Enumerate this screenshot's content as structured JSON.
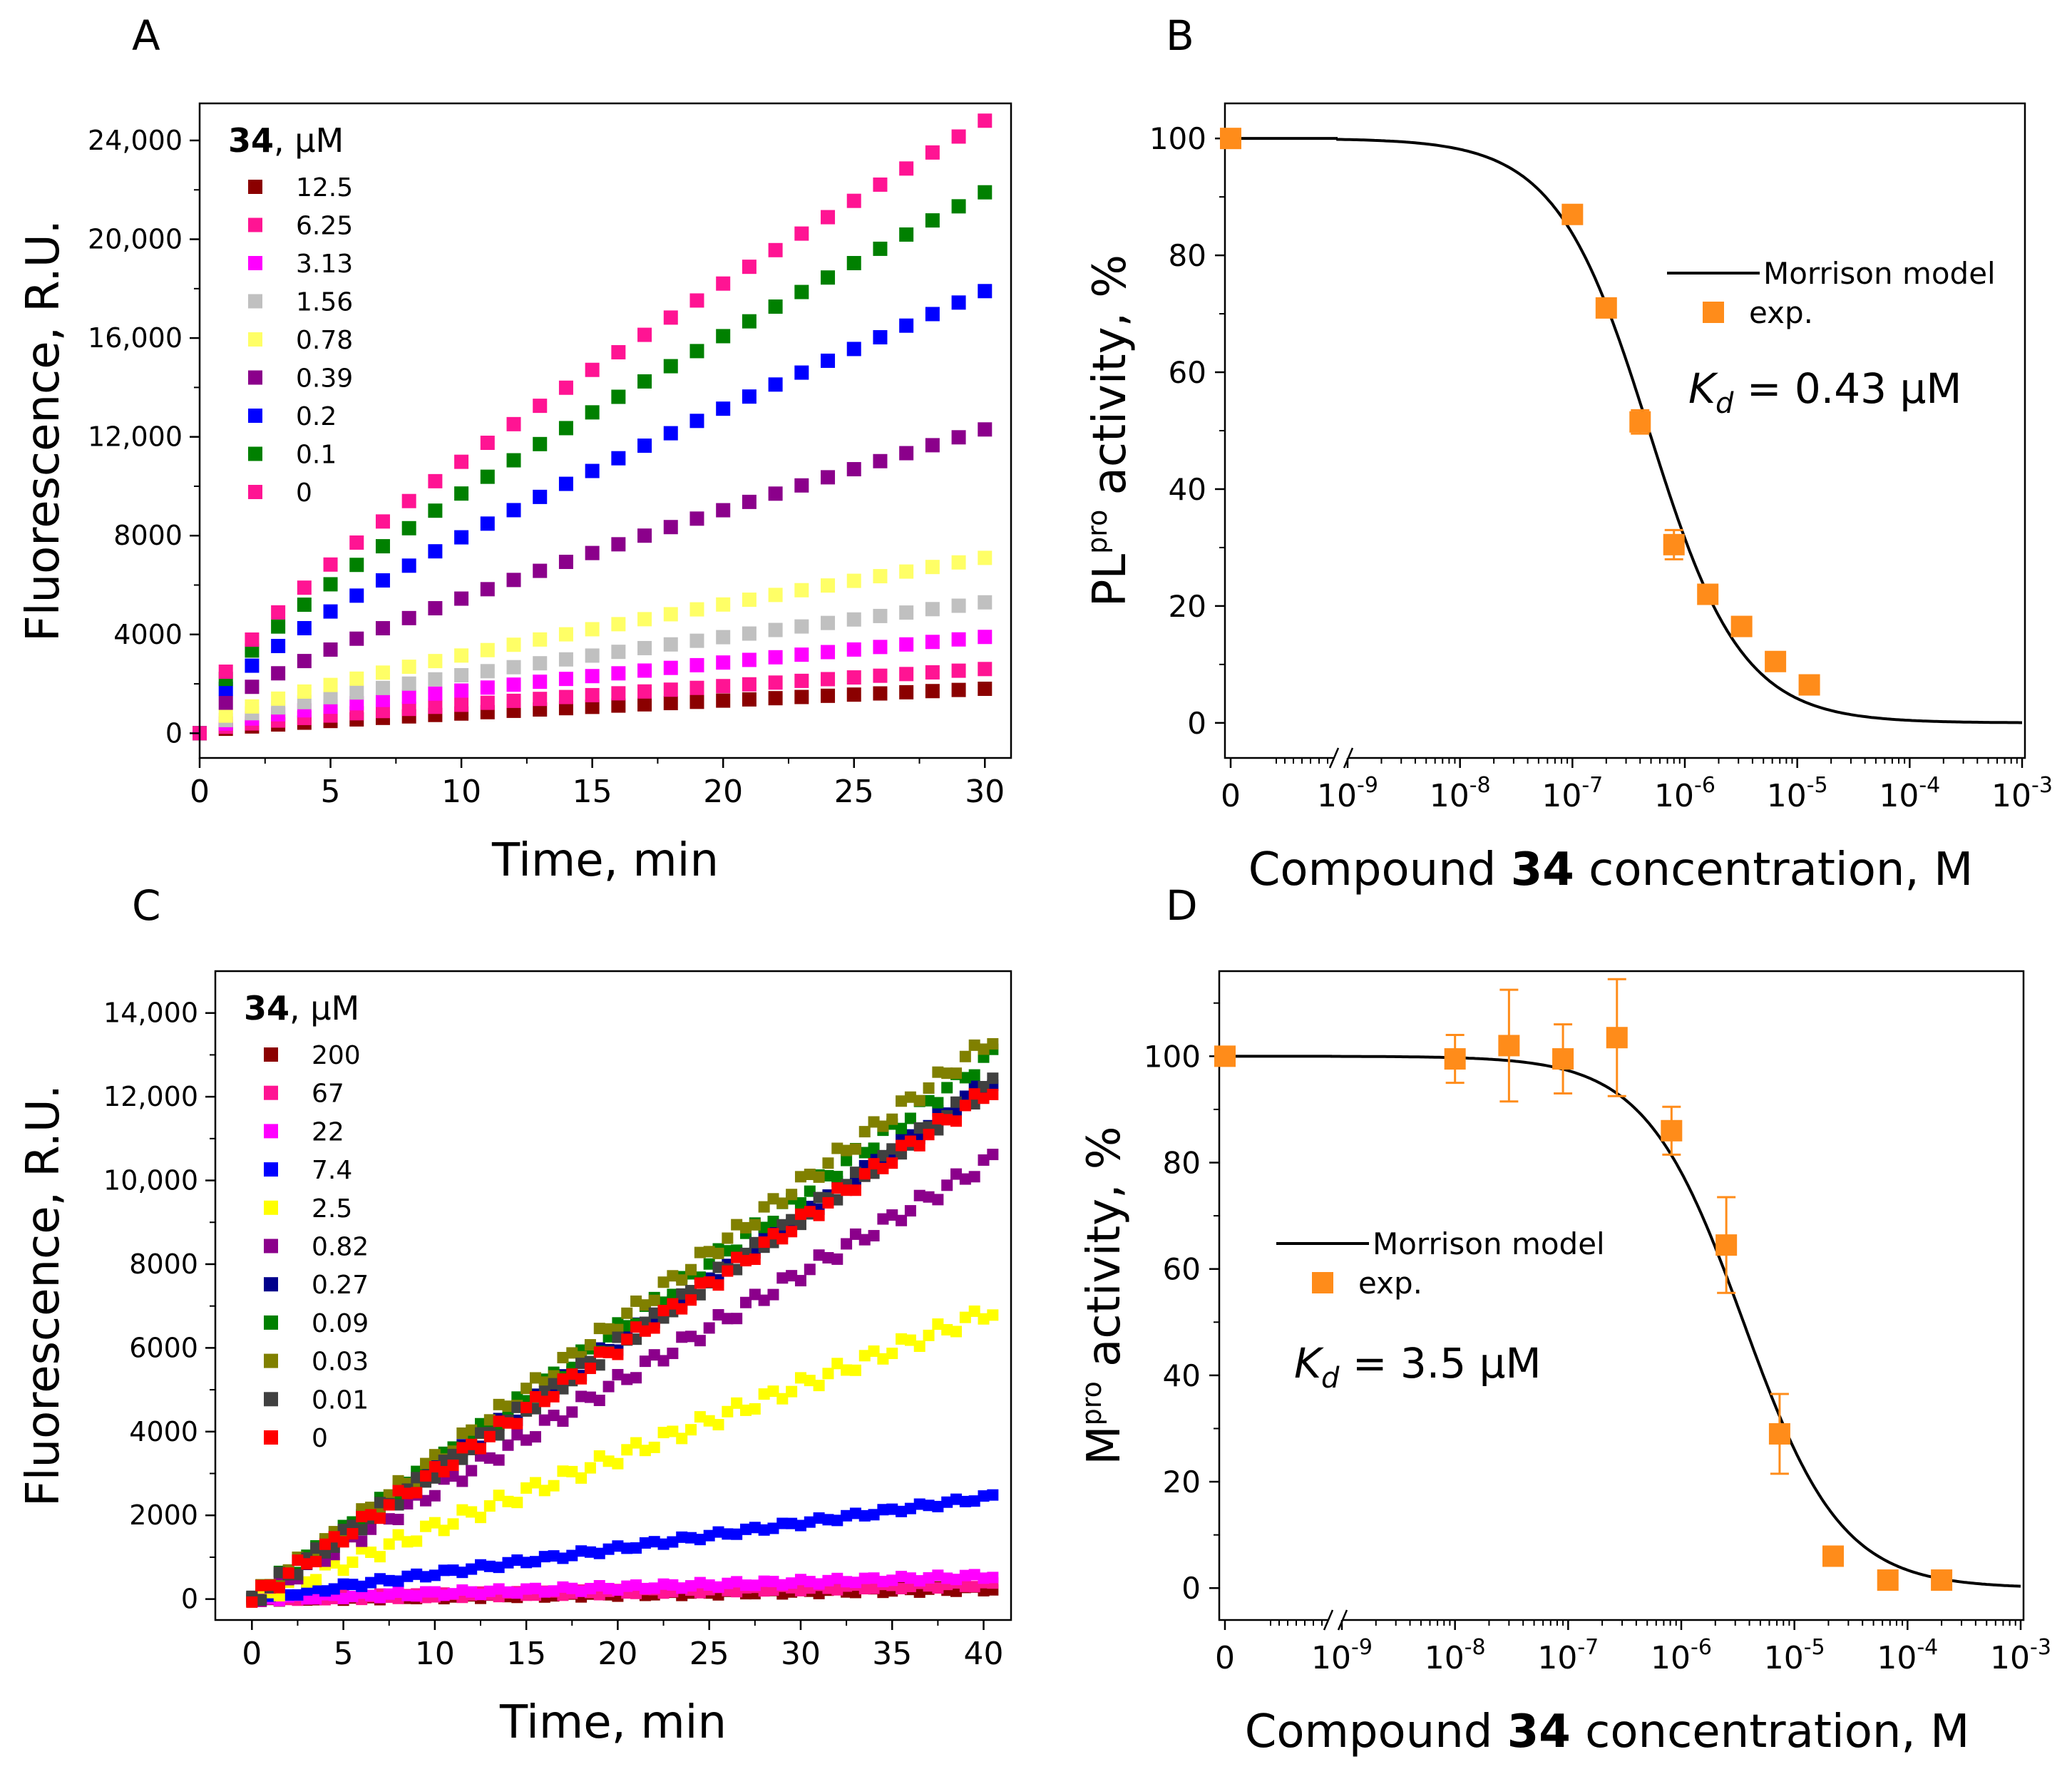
{
  "chart_data": [
    {
      "panel": "A",
      "type": "scatter",
      "xlabel": "Time, min",
      "ylabel": "Fluorescence, R.U.",
      "xlim": [
        0,
        31
      ],
      "ylim": [
        -1000,
        25500
      ],
      "xticks": [
        0,
        5,
        10,
        15,
        20,
        25,
        30
      ],
      "xtick_labels": [
        "0",
        "5",
        "10",
        "15",
        "20",
        "25",
        "30"
      ],
      "yticks": [
        0,
        4000,
        8000,
        12000,
        16000,
        20000,
        24000
      ],
      "ytick_labels": [
        "0",
        "4000",
        "8000",
        "12,000",
        "16,000",
        "20,000",
        "24,000"
      ],
      "legend_title": {
        "bold": "34",
        "rest": ", μM"
      },
      "x_start": 0,
      "x_end": 30,
      "x_step": 1,
      "series": [
        {
          "name": "12.5",
          "color": "#8b0000",
          "final": 1800
        },
        {
          "name": "6.25",
          "color": "#ff1493",
          "final": 2600
        },
        {
          "name": "3.13",
          "color": "#ff00ff",
          "final": 3900
        },
        {
          "name": "1.56",
          "color": "#c0c0c0",
          "final": 5300
        },
        {
          "name": "0.78",
          "color": "#ffff66",
          "final": 7100
        },
        {
          "name": "0.39",
          "color": "#8b008b",
          "final": 12300
        },
        {
          "name": "0.2",
          "color": "#0000ff",
          "final": 17900
        },
        {
          "name": "0.1",
          "color": "#008000",
          "final": 21900
        },
        {
          "name": "0",
          "color": "#ff1493",
          "final": 24800
        }
      ]
    },
    {
      "panel": "B",
      "type": "scatter",
      "xlabel": {
        "pre": "Compound ",
        "bold": "34",
        "post": " concentration, M"
      },
      "ylabel": {
        "base": "PL",
        "sup": "pro",
        "rest": " activity, %"
      },
      "ylim": [
        -6,
        106
      ],
      "yticks": [
        0,
        20,
        40,
        60,
        80,
        100
      ],
      "ytick_labels": [
        "0",
        "20",
        "40",
        "60",
        "80",
        "100"
      ],
      "xzero_label": "0",
      "xdecades": [
        -9,
        -8,
        -7,
        -6,
        -5,
        -4,
        -3
      ],
      "kd_text": {
        "k": "K",
        "sub": "d",
        "rest": " = 0.43 μM"
      },
      "kd_molar": 4.3e-07,
      "enzyme_molar": 1e-07,
      "legend": {
        "line": "Morrison model",
        "marker": "exp."
      },
      "points": [
        {
          "conc": 0,
          "value": 100,
          "err": 0
        },
        {
          "conc": 1e-07,
          "value": 87,
          "err": 0
        },
        {
          "conc": 2e-07,
          "value": 71,
          "err": 0
        },
        {
          "conc": 4e-07,
          "value": 51.5,
          "err": 2
        },
        {
          "conc": 8e-07,
          "value": 30.5,
          "err": 2.5
        },
        {
          "conc": 1.6e-06,
          "value": 22,
          "err": 0
        },
        {
          "conc": 3.2e-06,
          "value": 16.5,
          "err": 0
        },
        {
          "conc": 6.4e-06,
          "value": 10.5,
          "err": 0
        },
        {
          "conc": 1.28e-05,
          "value": 6.5,
          "err": 0
        }
      ],
      "marker_color": "#ff8c1a"
    },
    {
      "panel": "C",
      "type": "scatter",
      "xlabel": "Time, min",
      "ylabel": "Fluorescence, R.U.",
      "xlim": [
        -2,
        41.5
      ],
      "ylim": [
        -500,
        15000
      ],
      "xticks": [
        0,
        5,
        10,
        15,
        20,
        25,
        30,
        35,
        40
      ],
      "xtick_labels": [
        "0",
        "5",
        "10",
        "15",
        "20",
        "25",
        "30",
        "35",
        "40"
      ],
      "yticks": [
        0,
        2000,
        4000,
        6000,
        8000,
        10000,
        12000,
        14000
      ],
      "ytick_labels": [
        "0",
        "2000",
        "4000",
        "6000",
        "8000",
        "10,000",
        "12,000",
        "14,000"
      ],
      "legend_title": {
        "bold": "34",
        "rest": ", μM"
      },
      "x_start": 0,
      "x_end": 40.5,
      "x_step": 0.5,
      "series": [
        {
          "name": "200",
          "color": "#8b0000",
          "final": 250
        },
        {
          "name": "67",
          "color": "#ff1493",
          "final": 350
        },
        {
          "name": "22",
          "color": "#ff00ff",
          "final": 550
        },
        {
          "name": "7.4",
          "color": "#0000ff",
          "final": 2450
        },
        {
          "name": "2.5",
          "color": "#ffff00",
          "final": 6900
        },
        {
          "name": "0.82",
          "color": "#8b008b",
          "final": 10500
        },
        {
          "name": "0.27",
          "color": "#00008b",
          "final": 12400
        },
        {
          "name": "0.09",
          "color": "#008000",
          "final": 13000
        },
        {
          "name": "0.03",
          "color": "#808000",
          "final": 13400
        },
        {
          "name": "0.01",
          "color": "#404040",
          "final": 12300
        },
        {
          "name": "0",
          "color": "#ff0000",
          "final": 12200
        }
      ]
    },
    {
      "panel": "D",
      "type": "scatter",
      "xlabel": {
        "pre": "Compound ",
        "bold": "34",
        "post": " concentration, M"
      },
      "ylabel": {
        "base": "M",
        "sup": "pro",
        "rest": " activity, %"
      },
      "ylim": [
        -6,
        116
      ],
      "yticks": [
        0,
        20,
        40,
        60,
        80,
        100
      ],
      "ytick_labels": [
        "0",
        "20",
        "40",
        "60",
        "80",
        "100"
      ],
      "xzero_label": "0",
      "xdecades": [
        -9,
        -8,
        -7,
        -6,
        -5,
        -4,
        -3
      ],
      "kd_text": {
        "k": "K",
        "sub": "d",
        "rest": " = 3.5 μM"
      },
      "kd_molar": 3.5e-06,
      "enzyme_molar": 1e-07,
      "legend": {
        "line": "Morrison model",
        "marker": "exp."
      },
      "points": [
        {
          "conc": 0,
          "value": 100,
          "err": 0
        },
        {
          "conc": 1e-08,
          "value": 99.5,
          "err": 4.5
        },
        {
          "conc": 3e-08,
          "value": 102,
          "err": 10.5
        },
        {
          "conc": 9e-08,
          "value": 99.5,
          "err": 6.5
        },
        {
          "conc": 2.7e-07,
          "value": 103.5,
          "err": 11
        },
        {
          "conc": 8.2e-07,
          "value": 86,
          "err": 4.5
        },
        {
          "conc": 2.5e-06,
          "value": 64.5,
          "err": 9
        },
        {
          "conc": 7.4e-06,
          "value": 29,
          "err": 7.5
        },
        {
          "conc": 2.2e-05,
          "value": 6,
          "err": 0
        },
        {
          "conc": 6.7e-05,
          "value": 1.5,
          "err": 0
        },
        {
          "conc": 0.0002,
          "value": 1.5,
          "err": 0
        }
      ],
      "marker_color": "#ff8c1a"
    }
  ]
}
